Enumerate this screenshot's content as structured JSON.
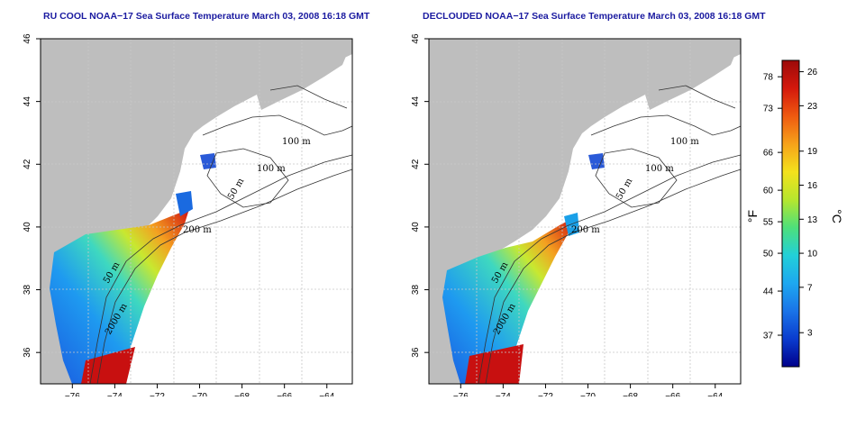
{
  "panels": [
    {
      "title": "RU COOL NOAA−17 Sea Surface Temperature March 03, 2008 16:18 GMT",
      "contour_labels": [
        "100 m",
        "100 m",
        "50 m",
        "200 m",
        "50 m",
        "2000 m"
      ]
    },
    {
      "title": "DECLOUDED NOAA−17 Sea Surface Temperature March 03, 2008 16:18 GMT",
      "contour_labels": [
        "100 m",
        "100 m",
        "50 m",
        "200 m",
        "50 m",
        "2000 m"
      ]
    }
  ],
  "axes": {
    "x_ticks": [
      "−76",
      "−74",
      "−72",
      "−70",
      "−68",
      "−66",
      "−64"
    ],
    "x_values": [
      -76,
      -74,
      -72,
      -70,
      -68,
      -66,
      -64
    ],
    "xlim": [
      -77.5,
      -62.8
    ],
    "y_ticks": [
      "36",
      "38",
      "40",
      "42",
      "44",
      "46"
    ],
    "y_values": [
      36,
      38,
      40,
      42,
      44,
      46
    ],
    "ylim": [
      35,
      46
    ]
  },
  "colorbar": {
    "f_label": "°F",
    "c_label": "°C",
    "f_ticks": [
      "78",
      "73",
      "66",
      "60",
      "55",
      "50",
      "44",
      "37"
    ],
    "c_ticks": [
      "26",
      "23",
      "19",
      "16",
      "13",
      "10",
      "7",
      "3"
    ],
    "c_range": [
      0,
      27
    ],
    "colors": [
      "#00008b",
      "#0a3ccf",
      "#1a74e8",
      "#1ea8f0",
      "#22d0d8",
      "#4ee07a",
      "#b6e62e",
      "#f3e21c",
      "#f6a21a",
      "#ef5a10",
      "#d4180c",
      "#9c0a0a"
    ]
  },
  "colors": {
    "land": "#bebebe",
    "water": "#ffffff",
    "title": "#1a1aa0",
    "grid": "#c8c8c8"
  }
}
